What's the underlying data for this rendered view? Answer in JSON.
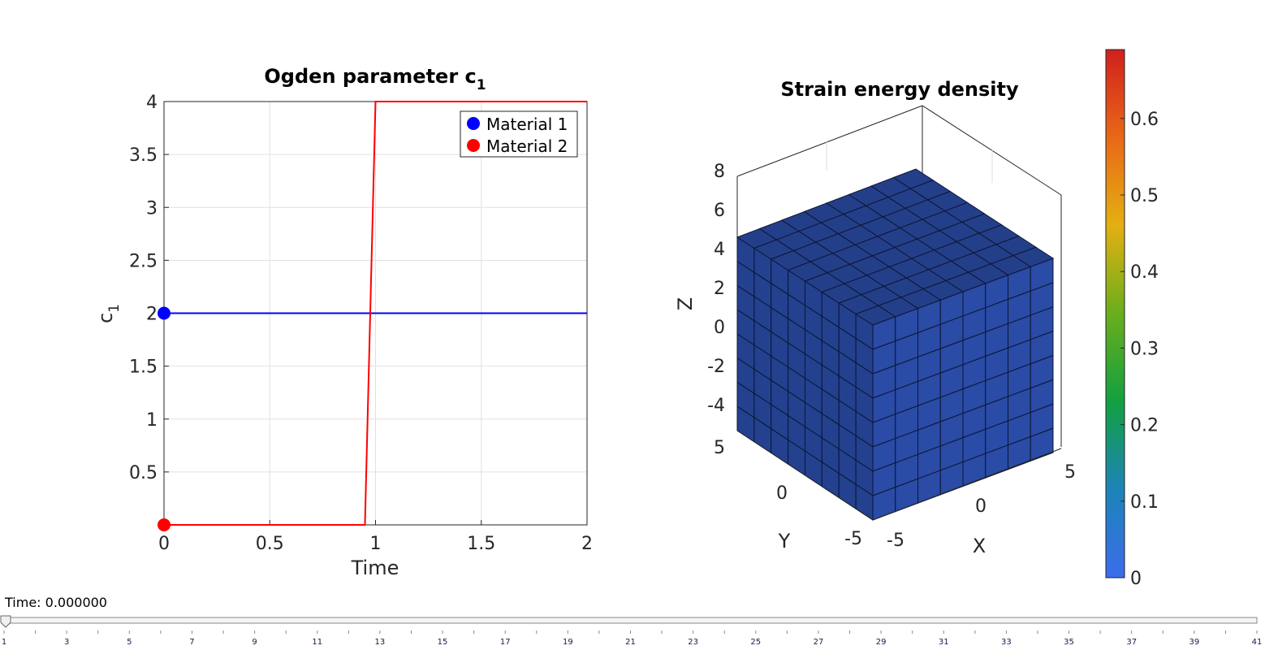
{
  "chart_data": [
    {
      "type": "line",
      "title": "Ogden parameter c",
      "title_subscript": "1",
      "xlabel": "Time",
      "ylabel": "c",
      "ylabel_subscript": "1",
      "xlim": [
        0,
        2
      ],
      "ylim": [
        0,
        4
      ],
      "xticks": [
        0,
        0.5,
        1,
        1.5,
        2
      ],
      "xtick_labels": [
        "0",
        "0.5",
        "1",
        "1.5",
        "2"
      ],
      "yticks": [
        0.5,
        1,
        1.5,
        2,
        2.5,
        3,
        3.5,
        4
      ],
      "ytick_labels": [
        "0.5",
        "1",
        "1.5",
        "2",
        "2.5",
        "3",
        "3.5",
        "4"
      ],
      "grid": true,
      "legend_position": "top-right",
      "series": [
        {
          "name": "Material 1",
          "color": "#0000ff",
          "x": [
            0,
            2
          ],
          "y": [
            2,
            2
          ],
          "marker": {
            "x": 0,
            "y": 2
          }
        },
        {
          "name": "Material 2",
          "color": "#ff0000",
          "x": [
            0,
            0.95,
            1.0,
            2
          ],
          "y": [
            0,
            0,
            4,
            4
          ],
          "marker": {
            "x": 0,
            "y": 0
          }
        }
      ]
    },
    {
      "type": "surface3d",
      "title": "Strain energy density",
      "xlabel": "X",
      "ylabel": "Y",
      "zlabel": "Z",
      "xticks": [
        "-5",
        "0",
        "5"
      ],
      "yticks": [
        "5",
        "0",
        "-5"
      ],
      "zticks": [
        "8",
        "6",
        "4",
        "2",
        "0",
        "-2",
        "-4"
      ],
      "mesh_divisions": 8,
      "face_color": "#2747a0",
      "colorbar": {
        "min": 0,
        "max": 0.69,
        "ticks": [
          0,
          0.1,
          0.2,
          0.3,
          0.4,
          0.5,
          0.6
        ],
        "tick_labels": [
          "0",
          "0.1",
          "0.2",
          "0.3",
          "0.4",
          "0.5",
          "0.6"
        ],
        "colors": [
          "#3c6cec",
          "#1c84b8",
          "#12a040",
          "#6aae1c",
          "#e3b012",
          "#e86816",
          "#d0201e"
        ]
      }
    }
  ],
  "slider": {
    "label": "Time: 0.000000",
    "value": 1,
    "min": 1,
    "max": 41,
    "tick_labels": [
      "1",
      "3",
      "5",
      "7",
      "9",
      "11",
      "13",
      "15",
      "17",
      "19",
      "21",
      "23",
      "25",
      "27",
      "29",
      "31",
      "33",
      "35",
      "37",
      "39",
      "41"
    ]
  }
}
